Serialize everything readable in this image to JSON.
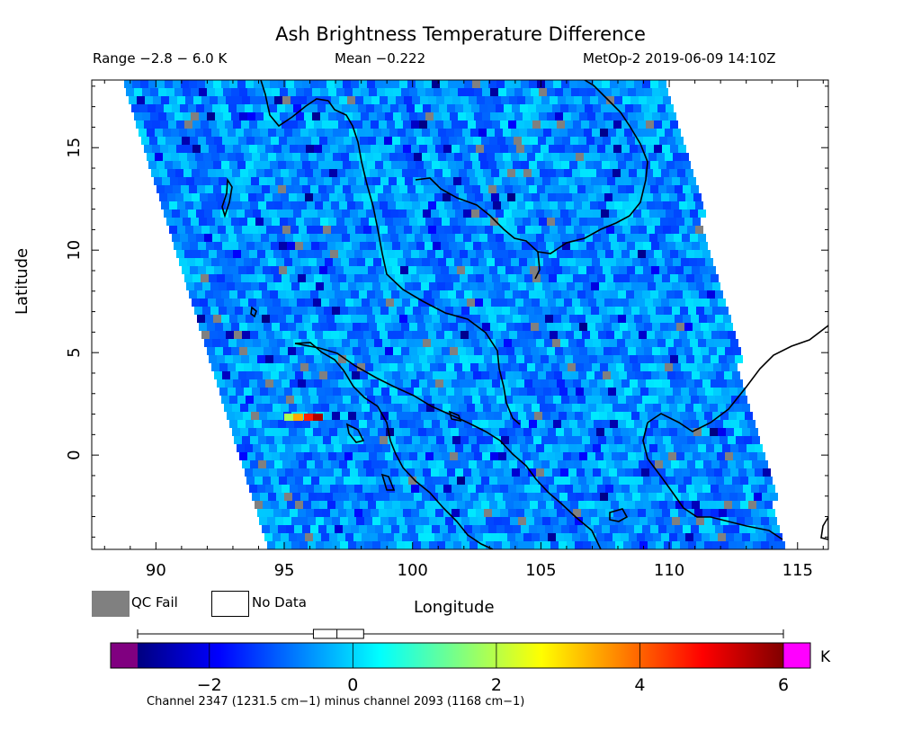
{
  "header": {
    "title": "Ash Brightness Temperature Difference",
    "range": "Range −2.8 − 6.0 K",
    "mean": "Mean −0.222",
    "satellite": "MetOp-2 2019-06-09 14:10Z"
  },
  "legend": {
    "qc_fail": "QC Fail",
    "no_data": "No Data",
    "qc_color": "#808080"
  },
  "colorbar": {
    "unit": "K",
    "min": -3,
    "max": 6,
    "ticks": [
      -2,
      0,
      2,
      4,
      6
    ],
    "tick_labels": [
      "−2",
      "0",
      "2",
      "4",
      "6"
    ],
    "underflow_color": "#800080",
    "overflow_color": "#ff00ff",
    "stops": [
      "#000080",
      "#0000ff",
      "#0080ff",
      "#00ffff",
      "#80ff80",
      "#ffff00",
      "#ff8000",
      "#ff0000",
      "#800000"
    ]
  },
  "footnote": "Channel 2347 (1231.5 cm−1) minus channel 2093 (1168 cm−1)",
  "chart_data": {
    "type": "heatmap",
    "title": "Ash Brightness Temperature Difference",
    "xlabel": "Longitude",
    "ylabel": "Latitude",
    "xlim": [
      87.5,
      116.2
    ],
    "ylim": [
      -4.6,
      18.3
    ],
    "x_ticks": [
      90,
      95,
      100,
      105,
      110,
      115
    ],
    "y_ticks": [
      0,
      5,
      10,
      15
    ],
    "value_range": [
      -2.8,
      6.0
    ],
    "mean": -0.222,
    "units": "K"
  }
}
